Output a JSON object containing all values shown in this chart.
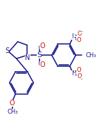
{
  "bg": "#ffffff",
  "bc": "#1a1a8c",
  "oc": "#cc1100",
  "lw": 1.15,
  "figsize": [
    1.4,
    1.65
  ],
  "dpi": 100,
  "xlim": [
    0,
    140
  ],
  "ylim": [
    0,
    165
  ]
}
